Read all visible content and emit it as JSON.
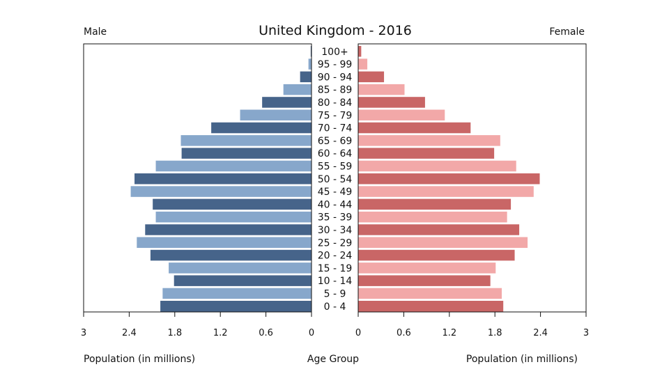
{
  "chart_data": {
    "type": "bar",
    "subtype": "population-pyramid",
    "title": "United Kingdom - 2016",
    "left_label": "Male",
    "right_label": "Female",
    "xlabel_left": "Population (in millions)",
    "xlabel_center": "Age Group",
    "xlabel_right": "Population (in millions)",
    "xlim": [
      0,
      3
    ],
    "ticks_left": [
      "3",
      "2.4",
      "1.8",
      "1.2",
      "0.6",
      "0"
    ],
    "ticks_right": [
      "0",
      "0.6",
      "1.2",
      "1.8",
      "2.4",
      "3"
    ],
    "categories": [
      "100+",
      "95 - 99",
      "90 - 94",
      "85 - 89",
      "80 - 84",
      "75 - 79",
      "70 - 74",
      "65 - 69",
      "60 - 64",
      "55 - 59",
      "50 - 54",
      "45 - 49",
      "40 - 44",
      "35 - 39",
      "30 - 34",
      "25 - 29",
      "20 - 24",
      "15 - 19",
      "10 - 14",
      "5 - 9",
      "0 - 4"
    ],
    "series": [
      {
        "name": "Male",
        "values": [
          0.01,
          0.04,
          0.15,
          0.37,
          0.65,
          0.94,
          1.32,
          1.72,
          1.71,
          2.05,
          2.33,
          2.38,
          2.09,
          2.05,
          2.19,
          2.3,
          2.12,
          1.88,
          1.81,
          1.96,
          1.99
        ]
      },
      {
        "name": "Female",
        "values": [
          0.04,
          0.12,
          0.34,
          0.61,
          0.88,
          1.14,
          1.48,
          1.87,
          1.79,
          2.08,
          2.39,
          2.31,
          2.01,
          1.96,
          2.12,
          2.23,
          2.06,
          1.81,
          1.74,
          1.89,
          1.91
        ]
      }
    ],
    "colors": {
      "male_dark": "#46648a",
      "male_light": "#87a7cb",
      "female_dark": "#c96666",
      "female_light": "#f2a8a8",
      "frame": "#111111"
    },
    "grid": false,
    "legend": "none"
  }
}
